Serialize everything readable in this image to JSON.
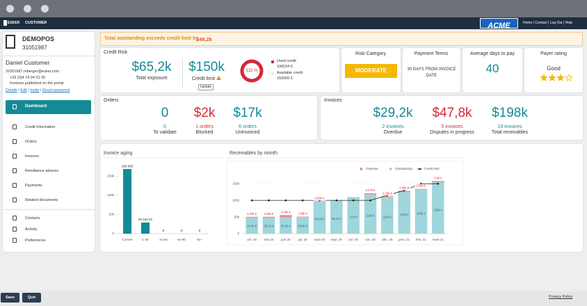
{
  "nav": {
    "brand": "ESKER",
    "portal": "CUSTOMER",
    "customer_logo": "ACME",
    "links": [
      "Home",
      "Contact",
      "Log Out",
      "Help"
    ]
  },
  "sidebar": {
    "company": "DEMOPOS",
    "company_id": "31051987",
    "contact": {
      "name": "Daniel Customer",
      "email": "31051987.mberger@esker.com",
      "phone": "+33 (0)4 74 94 31 05",
      "status": "Invoices published on the portal",
      "links": [
        "Details",
        "Edit",
        "Invite",
        "Reset password"
      ]
    },
    "menu_active": "Dashboard",
    "menu": [
      "Credit information",
      "Orders",
      "Invoices",
      "Remittance advices",
      "Payments",
      "Related documents"
    ],
    "menu_secondary": [
      "Contacts",
      "Activity",
      "Preferences"
    ]
  },
  "alert": {
    "text": "Total outstanding exceeds credit limit by",
    "amount": "$48,2k"
  },
  "credit_risk": {
    "title": "Credit Risk",
    "exposure": {
      "value": "$65,2k",
      "label": "Total exposure"
    },
    "limit": {
      "value": "$150k",
      "label": "Credit limit",
      "button": "Update"
    },
    "gauge_label": "132 %",
    "used": {
      "label": "Used credit",
      "value": "198154 €"
    },
    "available": {
      "label": "Available credit",
      "value": "150000 €"
    }
  },
  "risk_category": {
    "title": "Risk Category",
    "value": "MODERATE"
  },
  "payment_terms": {
    "title": "Payment Terms",
    "value": "30 DAYS FROM INVOICE DATE"
  },
  "avg_days": {
    "title": "Average days to pay",
    "value": "40"
  },
  "payer_rating": {
    "title": "Payer rating",
    "value": "Good",
    "stars": 3,
    "max_stars": 4
  },
  "orders": {
    "title": "Orders",
    "items": [
      {
        "amount": "0",
        "count": "0",
        "label": "To validate",
        "color": "#138a96"
      },
      {
        "amount": "$2k",
        "count": "1 orders",
        "label": "Blocked",
        "color": "#d62839"
      },
      {
        "amount": "$17k",
        "count": "6 orders",
        "label": "Uninvoiced",
        "color": "#138a96"
      }
    ]
  },
  "invoices": {
    "title": "Invoices",
    "items": [
      {
        "amount": "$29,2k",
        "count": "2 invoices",
        "label": "Overdue",
        "color": "#138a96"
      },
      {
        "amount": "$47,8k",
        "count": "5 invoices",
        "label": "Disputes in progress",
        "color": "#d62839"
      },
      {
        "amount": "$198k",
        "count": "19 invoices",
        "label": "Total receivables",
        "color": "#138a96"
      }
    ]
  },
  "chart_data": [
    {
      "type": "bar",
      "title": "Invoice aging",
      "categories": [
        "Current",
        "1-30",
        "31-60",
        "61-90",
        "91+"
      ],
      "values": [
        169000,
        29154.01,
        0,
        0,
        0
      ],
      "value_labels": [
        "169 000",
        "29 154.01",
        "0",
        "0",
        "0"
      ],
      "color": "#138a96",
      "ylim": [
        0,
        180000
      ],
      "yticks": [
        0,
        {
          "value": 50000,
          "label": "50k"
        },
        {
          "value": 100000,
          "label": "100k"
        },
        {
          "value": 150000,
          "label": "150k"
        }
      ],
      "grid": false
    },
    {
      "type": "combo",
      "title": "Receivables by month",
      "categories": [
        "avr. 20",
        "mai 20",
        "juin 20",
        "juil. 20",
        "août 20",
        "sept. 20",
        "oct. 20",
        "nov. 20",
        "déc. 20",
        "janv. 21",
        "févr. 21",
        "mars 21"
      ],
      "series": [
        {
          "name": "Overdue",
          "type": "bar",
          "color": "#f08a8a",
          "values": [
            2330,
            2550,
            6590,
            1590,
            950,
            0,
            0,
            3270,
            2230,
            3560,
            1550,
            3300
          ],
          "value_labels": [
            "2,33k €",
            "2,55k €",
            "6,59k €",
            "1,59k €",
            "0,95k €",
            null,
            null,
            "3,27k €",
            "2,23k €",
            "3,56k €",
            "1,55k €",
            "3,3k €"
          ]
        },
        {
          "name": "Outstanding",
          "type": "bar",
          "color": "#9fd6dc",
          "values": [
            48300,
            48100,
            49300,
            49600,
            96500,
            99100,
            110000,
            118000,
            110000,
            125000,
            133000,
            155000
          ],
          "value_labels": [
            "48,3k €",
            "48,1k €",
            "49,3k €",
            "49,6k €",
            "96,5k €",
            "99,1k €",
            "110k €",
            "118k €",
            "110k €",
            "125k €",
            "133k €",
            "155k €"
          ]
        },
        {
          "name": "Credit limit",
          "type": "line",
          "color": "#222222",
          "values": [
            100000,
            100000,
            100000,
            100000,
            100000,
            100000,
            100000,
            100000,
            115000,
            130000,
            150000,
            150000
          ]
        }
      ],
      "ylim": [
        0,
        165000
      ],
      "yticks": [
        0,
        {
          "value": 50000,
          "label": "50k"
        },
        {
          "value": 100000,
          "label": "100k"
        },
        {
          "value": 150000,
          "label": "150k"
        }
      ],
      "grid": true,
      "legend": "top-right"
    }
  ],
  "footer": {
    "save": "Save",
    "quit": "Quit",
    "privacy": "Privacy Policy"
  }
}
